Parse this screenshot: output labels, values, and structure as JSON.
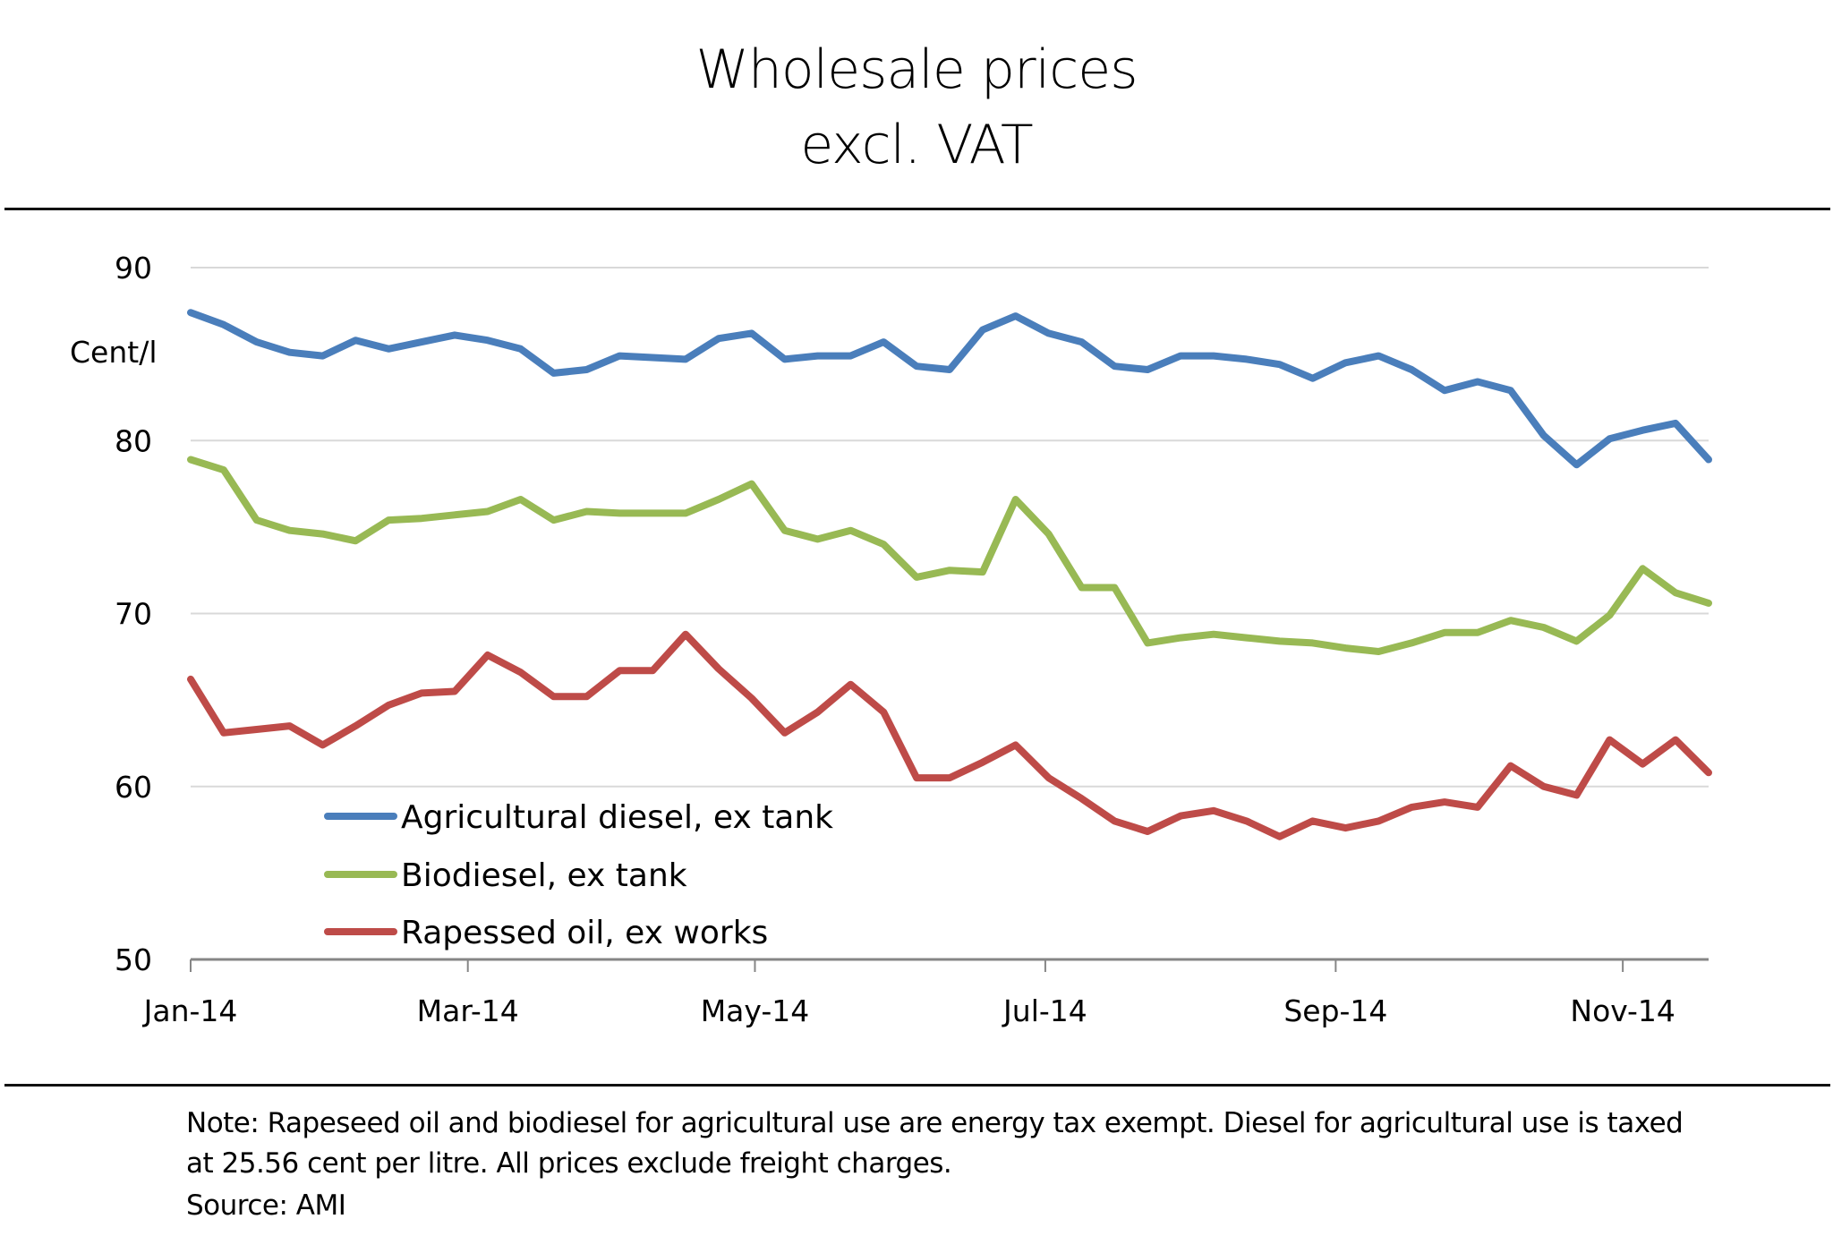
{
  "header": {
    "title_line1": "Wholesale prices",
    "title_line2": "excl. VAT"
  },
  "footer": {
    "note_line1": "Note:  Rapeseed oil and biodiesel for agricultural use are energy tax exempt. Diesel for agricultural use is taxed",
    "note_line2": "at 25.56 cent per litre. All prices exclude freight charges.",
    "source": "Source: AMI"
  },
  "chart_data": {
    "type": "line",
    "title": "Wholesale prices excl. VAT",
    "xlabel": "",
    "ylabel": "Cent/l",
    "ylim": [
      50,
      90
    ],
    "yticks": [
      50,
      60,
      70,
      80,
      90
    ],
    "ytick_labels": [
      "50",
      "60",
      "70",
      "80",
      "90"
    ],
    "grid": true,
    "x_points": 47,
    "x_interval": "weekly",
    "xtick_labels": [
      "Jan-14",
      "Mar-14",
      "May-14",
      "Jul-14",
      "Sep-14",
      "Nov-14"
    ],
    "xtick_positions_weeks": [
      0,
      8.4,
      17.1,
      25.9,
      34.7,
      43.4
    ],
    "legend_position": "bottom-left, inside plot",
    "series": [
      {
        "name": "Agricultural diesel,  ex tank",
        "color": "#4a7ebb",
        "values": [
          87.4,
          86.7,
          85.7,
          85.1,
          84.9,
          85.8,
          85.3,
          85.7,
          86.1,
          85.8,
          85.3,
          83.9,
          84.1,
          84.9,
          84.8,
          84.7,
          85.9,
          86.2,
          84.7,
          84.9,
          84.9,
          85.7,
          84.3,
          84.1,
          86.4,
          87.2,
          86.2,
          85.7,
          84.3,
          84.1,
          84.9,
          84.9,
          84.7,
          84.4,
          83.6,
          84.5,
          84.9,
          84.1,
          82.9,
          83.4,
          82.9,
          80.3,
          78.6,
          80.1,
          80.6,
          81.0,
          78.9
        ]
      },
      {
        "name": "Biodiesel, ex tank",
        "color": "#98b954",
        "values": [
          78.9,
          78.3,
          75.4,
          74.8,
          74.6,
          74.2,
          75.4,
          75.5,
          75.7,
          75.9,
          76.6,
          75.4,
          75.9,
          75.8,
          75.8,
          75.8,
          76.6,
          77.5,
          74.8,
          74.3,
          74.8,
          74.0,
          72.1,
          72.5,
          72.4,
          76.6,
          74.6,
          71.5,
          71.5,
          68.3,
          68.6,
          68.8,
          68.6,
          68.4,
          68.3,
          68.0,
          67.8,
          68.3,
          68.9,
          68.9,
          69.6,
          69.2,
          68.4,
          69.9,
          72.6,
          71.2,
          70.6
        ]
      },
      {
        "name": "Rapessed oil, ex works",
        "color": "#be4b48",
        "values": [
          66.2,
          63.1,
          63.3,
          63.5,
          62.4,
          63.5,
          64.7,
          65.4,
          65.5,
          67.6,
          66.6,
          65.2,
          65.2,
          66.7,
          66.7,
          68.8,
          66.8,
          65.1,
          63.1,
          64.3,
          65.9,
          64.3,
          60.5,
          60.5,
          61.4,
          62.4,
          60.5,
          59.3,
          58.0,
          57.4,
          58.3,
          58.6,
          58.0,
          57.1,
          58.0,
          57.6,
          58.0,
          58.8,
          59.1,
          58.8,
          61.2,
          60.0,
          59.5,
          62.7,
          61.3,
          62.7,
          60.8
        ]
      }
    ],
    "gridline_color": "#d9d9d9",
    "axis_color": "#868686"
  }
}
